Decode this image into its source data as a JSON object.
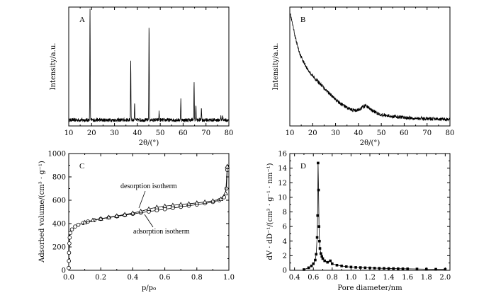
{
  "figure": {
    "panels": [
      "A",
      "B",
      "C",
      "D"
    ]
  },
  "chart_data": [
    {
      "id": "A",
      "type": "line",
      "panel_label": "A",
      "xlabel": "2θ/(°)",
      "ylabel": "Intensity/a.u.",
      "xlim": [
        10,
        80
      ],
      "xticks": [
        10,
        20,
        30,
        40,
        50,
        60,
        70,
        80
      ],
      "yticks_labeled": false,
      "baseline": 0.05,
      "ylim": [
        0,
        1
      ],
      "peaks": [
        {
          "x": 19.3,
          "y": 1.0
        },
        {
          "x": 37.1,
          "y": 0.55
        },
        {
          "x": 38.8,
          "y": 0.2
        },
        {
          "x": 45.1,
          "y": 0.86
        },
        {
          "x": 49.5,
          "y": 0.12
        },
        {
          "x": 59.0,
          "y": 0.23
        },
        {
          "x": 64.8,
          "y": 0.37
        },
        {
          "x": 65.6,
          "y": 0.18
        },
        {
          "x": 68.0,
          "y": 0.16
        },
        {
          "x": 76.5,
          "y": 0.08
        },
        {
          "x": 77.3,
          "y": 0.1
        }
      ]
    },
    {
      "id": "B",
      "type": "line",
      "panel_label": "B",
      "xlabel": "2θ/(°)",
      "ylabel": "Intensity/a.u.",
      "xlim": [
        10,
        80
      ],
      "xticks": [
        10,
        20,
        30,
        40,
        50,
        60,
        70,
        80
      ],
      "yticks_labeled": false,
      "ylim": [
        0,
        1
      ],
      "x": [
        10,
        11,
        12,
        13,
        14,
        15,
        16,
        18,
        20,
        22,
        24,
        26,
        28,
        30,
        32,
        34,
        36,
        38,
        40,
        42,
        43,
        44,
        46,
        48,
        50,
        55,
        60,
        65,
        70,
        75,
        80
      ],
      "y": [
        0.96,
        0.87,
        0.78,
        0.7,
        0.63,
        0.58,
        0.54,
        0.47,
        0.42,
        0.38,
        0.34,
        0.3,
        0.26,
        0.22,
        0.19,
        0.165,
        0.145,
        0.13,
        0.135,
        0.16,
        0.17,
        0.16,
        0.13,
        0.11,
        0.095,
        0.08,
        0.07,
        0.065,
        0.06,
        0.058,
        0.055
      ]
    },
    {
      "id": "C",
      "type": "scatter",
      "panel_label": "C",
      "xlabel": "p/p₀",
      "ylabel": "Adsorbed volume/(cm³ · g⁻¹)",
      "xlim": [
        0,
        1.0
      ],
      "ylim": [
        0,
        1000
      ],
      "xticks": [
        0.0,
        0.2,
        0.4,
        0.6,
        0.8,
        1.0
      ],
      "yticks": [
        0,
        200,
        400,
        600,
        800,
        1000
      ],
      "series": [
        {
          "name": "adsorption isotherm",
          "marker": "circle",
          "x": [
            0.0,
            0.001,
            0.002,
            0.004,
            0.006,
            0.01,
            0.02,
            0.04,
            0.06,
            0.09,
            0.12,
            0.16,
            0.2,
            0.25,
            0.3,
            0.35,
            0.4,
            0.45,
            0.5,
            0.55,
            0.6,
            0.65,
            0.7,
            0.75,
            0.8,
            0.85,
            0.9,
            0.94,
            0.97,
            0.985,
            0.99
          ],
          "y": [
            20,
            80,
            150,
            230,
            280,
            320,
            350,
            375,
            390,
            405,
            418,
            430,
            440,
            452,
            462,
            473,
            483,
            493,
            503,
            513,
            523,
            533,
            543,
            553,
            563,
            573,
            585,
            600,
            625,
            700,
            860
          ]
        },
        {
          "name": "desorption isotherm",
          "marker": "triangle",
          "x": [
            0.99,
            0.98,
            0.95,
            0.9,
            0.85,
            0.8,
            0.75,
            0.7,
            0.65,
            0.6,
            0.55,
            0.5,
            0.45,
            0.4,
            0.35,
            0.3,
            0.25,
            0.2,
            0.15,
            0.1
          ],
          "y": [
            890,
            660,
            610,
            595,
            585,
            577,
            570,
            564,
            557,
            550,
            540,
            525,
            505,
            490,
            478,
            466,
            454,
            442,
            428,
            410
          ]
        }
      ],
      "annotations": [
        "desorption isotherm",
        "adsorption isotherm"
      ]
    },
    {
      "id": "D",
      "type": "line",
      "panel_label": "D",
      "xlabel": "Pore diameter/nm",
      "ylabel": "dV · dD⁻¹/(cm³ · g⁻¹ · nm⁻¹)",
      "xlim": [
        0.35,
        2.05
      ],
      "ylim": [
        0,
        16
      ],
      "xticks": [
        0.4,
        0.6,
        0.8,
        1.0,
        1.2,
        1.4,
        1.6,
        1.8,
        2.0
      ],
      "yticks": [
        0,
        2,
        4,
        6,
        8,
        10,
        12,
        14,
        16
      ],
      "series": [
        {
          "name": "",
          "marker": "square",
          "x": [
            0.5,
            0.55,
            0.58,
            0.6,
            0.62,
            0.63,
            0.64,
            0.645,
            0.65,
            0.655,
            0.66,
            0.665,
            0.67,
            0.68,
            0.69,
            0.7,
            0.72,
            0.75,
            0.78,
            0.8,
            0.85,
            0.9,
            0.95,
            1.0,
            1.05,
            1.1,
            1.15,
            1.2,
            1.25,
            1.3,
            1.35,
            1.4,
            1.45,
            1.5,
            1.55,
            1.6,
            1.7,
            1.8,
            1.9,
            2.0
          ],
          "y": [
            0.1,
            0.35,
            0.6,
            0.9,
            1.4,
            2.2,
            4.5,
            7.5,
            14.7,
            11.0,
            6.0,
            4.0,
            3.0,
            2.3,
            1.9,
            1.6,
            1.3,
            1.1,
            1.3,
            0.9,
            0.7,
            0.6,
            0.5,
            0.45,
            0.4,
            0.38,
            0.35,
            0.33,
            0.3,
            0.28,
            0.27,
            0.25,
            0.24,
            0.22,
            0.21,
            0.2,
            0.18,
            0.16,
            0.15,
            0.14
          ]
        }
      ]
    }
  ]
}
